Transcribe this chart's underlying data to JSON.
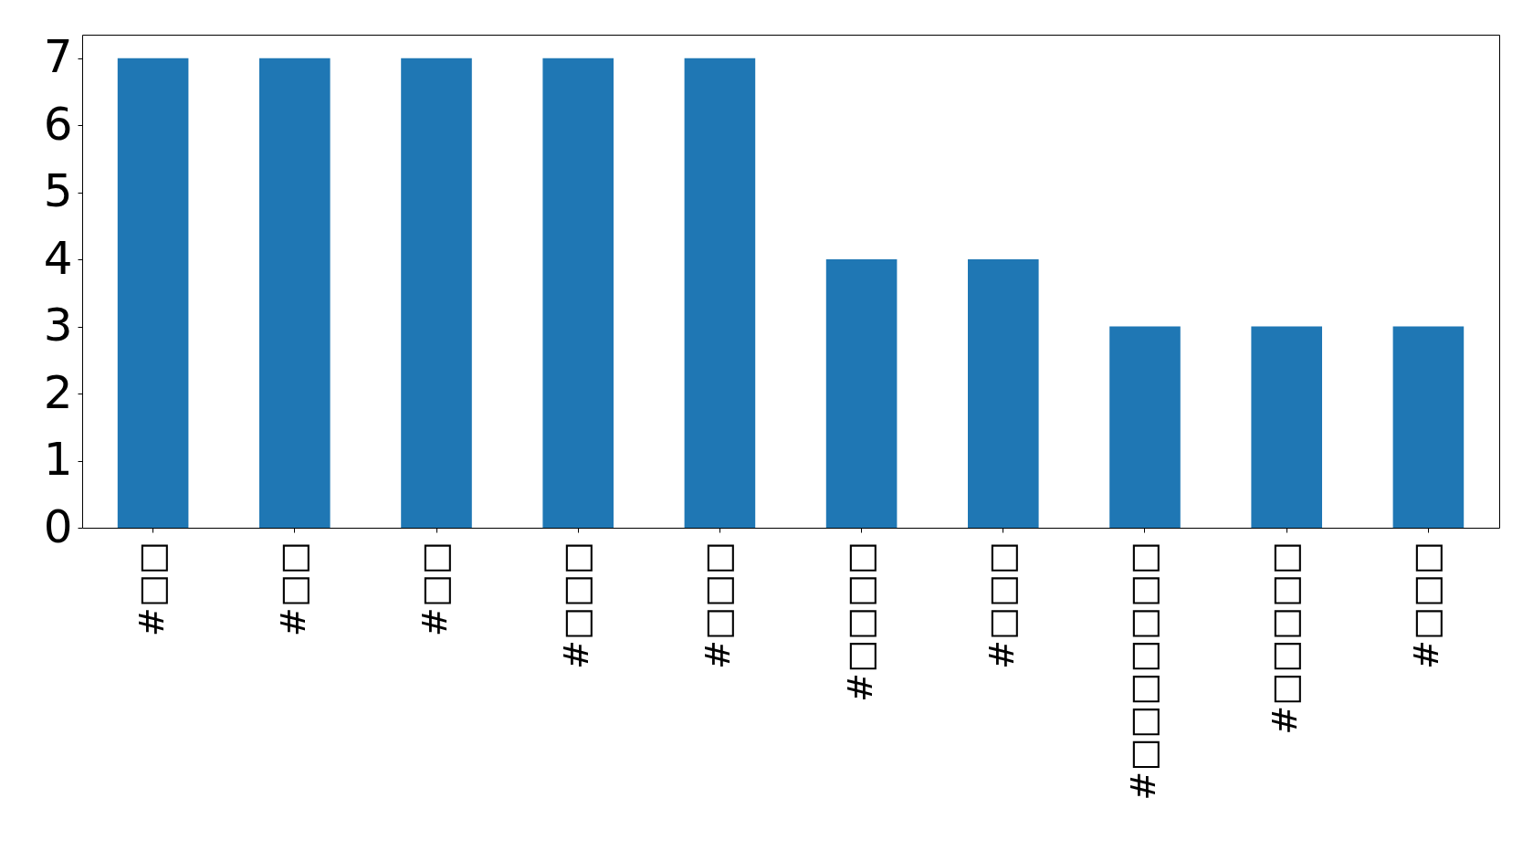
{
  "chart_data": {
    "type": "bar",
    "categories": [
      "#□□",
      "#□□",
      "#□□",
      "#□□□",
      "#□□□",
      "#□□□□",
      "#□□□",
      "#□□□□□□□",
      "#□□□□□",
      "#□□□"
    ],
    "values": [
      7,
      7,
      7,
      7,
      7,
      4,
      4,
      3,
      3,
      3
    ],
    "color": "#1f77b4",
    "ylim": [
      0,
      7.35
    ],
    "yticks": [
      0,
      1,
      2,
      3,
      4,
      5,
      6,
      7
    ],
    "grid": false
  }
}
